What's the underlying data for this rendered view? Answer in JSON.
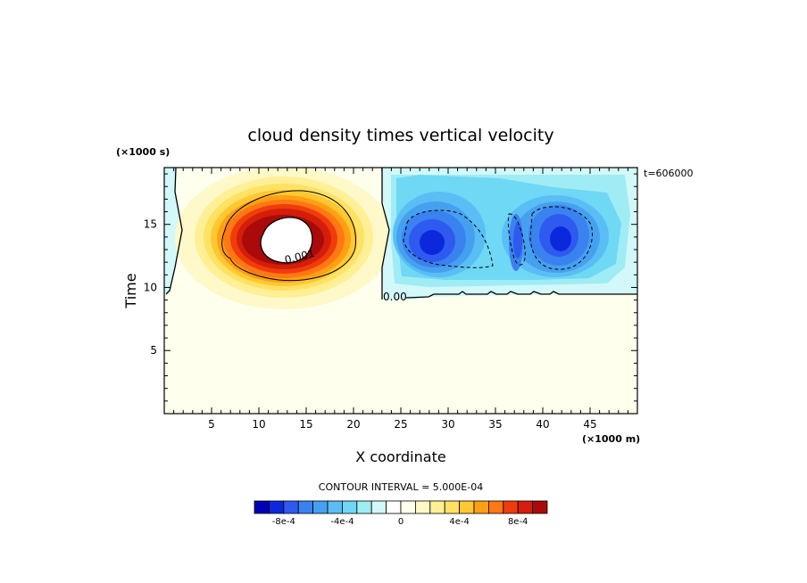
{
  "chart_data": {
    "type": "heatmap",
    "title": "cloud density times vertical velocity",
    "xlabel": "X coordinate",
    "ylabel": "Time",
    "x_unit": "(×1000 m)",
    "y_unit": "(×1000 s)",
    "time_stamp": "t=606000",
    "xlim": [
      0,
      50
    ],
    "ylim": [
      0,
      19.5
    ],
    "x_ticks": [
      5,
      10,
      15,
      20,
      25,
      30,
      35,
      40,
      45
    ],
    "y_ticks": [
      5,
      10,
      15
    ],
    "background_value": 0,
    "background_color": "#ffffee",
    "contour_interval_text": "CONTOUR INTERVAL = 5.000E-04",
    "contour_labels": [
      {
        "text": "0.001",
        "x": 16.0,
        "y": 12.5
      },
      {
        "text": "0.00",
        "x": 24.3,
        "y": 9.6
      }
    ],
    "features": [
      {
        "name": "positive updraft core",
        "x_center": 13,
        "y_center": 14.4,
        "max_value": 0.0011
      },
      {
        "name": "negative region left",
        "x_center": 29,
        "y_center": 13.8,
        "min_value": -0.0009
      },
      {
        "name": "negative region right",
        "x_center": 41.5,
        "y_center": 14.2,
        "min_value": -0.0009
      }
    ],
    "colorbar": {
      "levels": [
        -0.001,
        -0.0009,
        -0.0008,
        -0.0007,
        -0.0006,
        -0.0005,
        -0.0004,
        -0.0003,
        -0.0002,
        -0.0001,
        0,
        0.0001,
        0.0002,
        0.0003,
        0.0004,
        0.0005,
        0.0006,
        0.0007,
        0.0008,
        0.0009,
        0.001
      ],
      "tick_labels": [
        "-8e-4",
        "-4e-4",
        "0",
        "4e-4",
        "8e-4"
      ],
      "colors": [
        "#0000b4",
        "#0c28dc",
        "#2e5af0",
        "#3a82f0",
        "#46a0f0",
        "#5abef5",
        "#6ed8f5",
        "#a0ecf5",
        "#d2f8fa",
        "#ffffff",
        "#ffffee",
        "#fff8c8",
        "#fff096",
        "#ffe164",
        "#ffc832",
        "#ffa014",
        "#ff7814",
        "#f03c0a",
        "#d21e0a",
        "#aa0a0a"
      ]
    }
  }
}
